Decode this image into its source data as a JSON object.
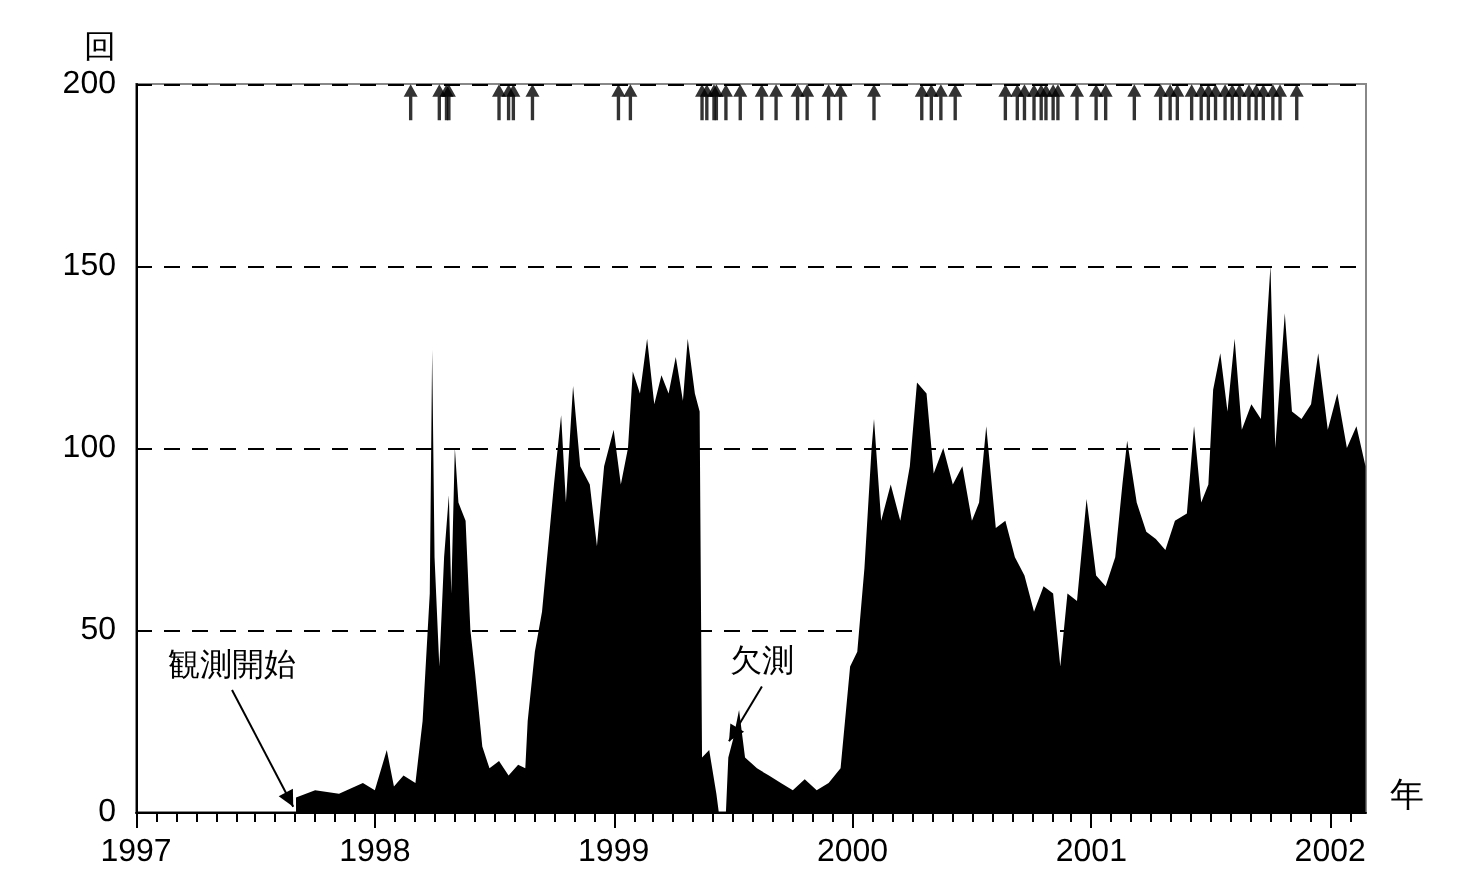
{
  "chart_data": {
    "type": "area",
    "ylabel": "回",
    "xlabel": "年",
    "xlim": [
      1997,
      2002.15
    ],
    "xticks": [
      1997,
      1998,
      1999,
      2000,
      2001,
      2002
    ],
    "ylim": [
      0,
      200
    ],
    "yticks": [
      0,
      50,
      100,
      150,
      200
    ],
    "grid": "y",
    "annotations": [
      {
        "text": "観測開始",
        "x": 1997.67,
        "y": 0
      },
      {
        "text": "欠測",
        "x": 1999.47,
        "y": 18
      }
    ],
    "series": [
      {
        "color": "#000000",
        "x": [
          1997.67,
          1997.75,
          1997.85,
          1997.95,
          1998.0,
          1998.05,
          1998.08,
          1998.12,
          1998.17,
          1998.2,
          1998.23,
          1998.24,
          1998.25,
          1998.27,
          1998.29,
          1998.31,
          1998.32,
          1998.335,
          1998.35,
          1998.38,
          1998.4,
          1998.42,
          1998.45,
          1998.48,
          1998.52,
          1998.56,
          1998.6,
          1998.63,
          1998.64,
          1998.67,
          1998.7,
          1998.72,
          1998.75,
          1998.78,
          1998.8,
          1998.83,
          1998.86,
          1998.9,
          1998.93,
          1998.96,
          1999.0,
          1999.03,
          1999.06,
          1999.08,
          1999.11,
          1999.14,
          1999.17,
          1999.2,
          1999.23,
          1999.26,
          1999.29,
          1999.31,
          1999.34,
          1999.36,
          1999.37,
          1999.4,
          1999.43,
          1999.44,
          1999.47,
          1999.48,
          1999.5,
          1999.525,
          1999.55,
          1999.6,
          1999.65,
          1999.7,
          1999.75,
          1999.8,
          1999.85,
          1999.9,
          1999.95,
          1999.99,
          2000.02,
          2000.05,
          2000.08,
          2000.09,
          2000.12,
          2000.16,
          2000.2,
          2000.24,
          2000.27,
          2000.31,
          2000.34,
          2000.38,
          2000.42,
          2000.46,
          2000.5,
          2000.53,
          2000.56,
          2000.6,
          2000.64,
          2000.68,
          2000.72,
          2000.76,
          2000.8,
          2000.84,
          2000.87,
          2000.9,
          2000.94,
          2000.98,
          2001.02,
          2001.06,
          2001.1,
          2001.13,
          2001.15,
          2001.19,
          2001.23,
          2001.27,
          2001.31,
          2001.35,
          2001.4,
          2001.43,
          2001.46,
          2001.49,
          2001.51,
          2001.54,
          2001.57,
          2001.6,
          2001.63,
          2001.67,
          2001.71,
          2001.75,
          2001.77,
          2001.81,
          2001.84,
          2001.88,
          2001.92,
          2001.95,
          2001.99,
          2002.03,
          2002.07,
          2002.11,
          2002.148
        ],
        "values": [
          4,
          6,
          5,
          8,
          6,
          17,
          7,
          10,
          8,
          25,
          60,
          127,
          70,
          40,
          70,
          87,
          60,
          100,
          85,
          80,
          50,
          38,
          18,
          12,
          14,
          10,
          13,
          12,
          25,
          44,
          55,
          69,
          90,
          109,
          85,
          117,
          95,
          90,
          73,
          95,
          105,
          90,
          100,
          121,
          115,
          130,
          112,
          120,
          115,
          125,
          113,
          130,
          115,
          110,
          15,
          17,
          5,
          0,
          0,
          15,
          20,
          28,
          15,
          12,
          10,
          8,
          6,
          9,
          6,
          8,
          12,
          40,
          44,
          67,
          100,
          108,
          80,
          90,
          80,
          95,
          118,
          115,
          93,
          100,
          90,
          95,
          80,
          85,
          106,
          78,
          80,
          70,
          65,
          55,
          62,
          60,
          40,
          60,
          58,
          86,
          65,
          62,
          70,
          90,
          102,
          85,
          77,
          75,
          72,
          80,
          82,
          106,
          85,
          90,
          116,
          126,
          110,
          130,
          105,
          112,
          108,
          150,
          100,
          137,
          110,
          108,
          112,
          126,
          105,
          115,
          100,
          106,
          95
        ]
      },
      {
        "type": "scatter",
        "color": "#000000",
        "marker": "triangle",
        "x": [
          1998.15,
          1998.27,
          1998.3,
          1998.31,
          1998.52,
          1998.56,
          1998.58,
          1998.66,
          1999.02,
          1999.07,
          1999.37,
          1999.39,
          1999.42,
          1999.43,
          1999.47,
          1999.53,
          1999.62,
          1999.68,
          1999.77,
          1999.81,
          1999.9,
          1999.95,
          2000.09,
          2000.29,
          2000.33,
          2000.37,
          2000.43,
          2000.64,
          2000.69,
          2000.72,
          2000.76,
          2000.79,
          2000.81,
          2000.84,
          2000.86,
          2000.94,
          2001.02,
          2001.06,
          2001.18,
          2001.29,
          2001.33,
          2001.36,
          2001.42,
          2001.46,
          2001.49,
          2001.52,
          2001.56,
          2001.59,
          2001.62,
          2001.66,
          2001.69,
          2001.72,
          2001.76,
          2001.79,
          2001.86
        ],
        "values": [
          195,
          195,
          195,
          195,
          195,
          195,
          195,
          195,
          195,
          195,
          195,
          195,
          195,
          195,
          195,
          195,
          195,
          195,
          195,
          195,
          195,
          195,
          195,
          195,
          195,
          195,
          195,
          195,
          195,
          195,
          195,
          195,
          195,
          195,
          195,
          195,
          195,
          195,
          195,
          195,
          195,
          195,
          195,
          195,
          195,
          195,
          195,
          195,
          195,
          195,
          195,
          195,
          195,
          195,
          195
        ]
      }
    ]
  }
}
